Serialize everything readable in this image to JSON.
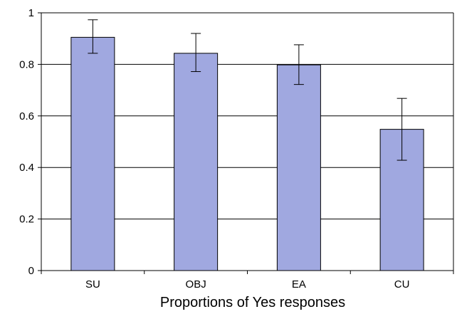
{
  "chart_data": {
    "type": "bar",
    "title": "",
    "xlabel": "Proportions of Yes responses",
    "ylabel": "",
    "categories": [
      "SU",
      "OBJ",
      "EA",
      "CU"
    ],
    "values": [
      0.905,
      0.843,
      0.798,
      0.548
    ],
    "error_low": [
      0.843,
      0.772,
      0.722,
      0.428
    ],
    "error_high": [
      0.973,
      0.92,
      0.876,
      0.668
    ],
    "ylim": [
      0,
      1
    ],
    "yticks": [
      0,
      0.2,
      0.4,
      0.6,
      0.8,
      1
    ],
    "ytick_labels": [
      "0",
      "0.2",
      "0.4",
      "0.6",
      "0.8",
      "1"
    ],
    "grid": true,
    "legend": "none",
    "colors": {
      "bar_fill": "#a0a8e0",
      "bar_stroke": "#000000",
      "grid": "#000000",
      "error_bar": "#000000"
    }
  }
}
